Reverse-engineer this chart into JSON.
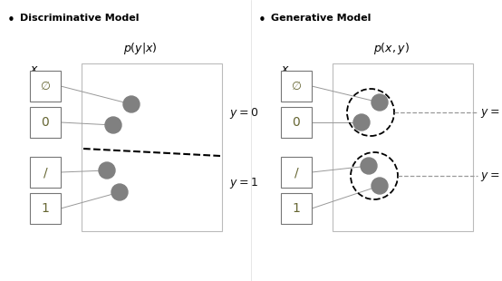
{
  "title_left": "Discriminative Model",
  "title_right": "Generative Model",
  "subtitle_left": "$p(y|x)$",
  "subtitle_right": "$p(x, y)$",
  "dot_color": "#808080",
  "bg": "#ffffff",
  "box_edge": "#777777",
  "outer_box_edge": "#bbbbbb",
  "line_color": "#999999",
  "label_color": "#111111",
  "fig_w": 5.54,
  "fig_h": 3.1,
  "dpi": 100
}
